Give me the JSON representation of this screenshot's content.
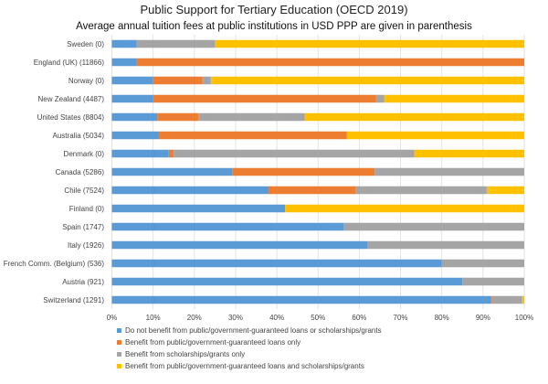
{
  "chart_data": {
    "type": "bar",
    "orientation": "horizontal",
    "stacked": "100%",
    "title": "Public Support for Tertiary Education (OECD 2019)",
    "subtitle": "Average annual tuition fees at public institutions in USD PPP are given in parenthesis",
    "categories": [
      "Sweden (0)",
      "England (UK) (11866)",
      "Norway (0)",
      "New Zealand (4487)",
      "United States (8804)",
      "Australia (5034)",
      "Denmark (0)",
      "Canada (5286)",
      "Chile (7524)",
      "Finland (0)",
      "Spain (1747)",
      "Italy (1926)",
      "French Comm. (Belgium) (536)",
      "Austria (921)",
      "Switzerland (1291)"
    ],
    "series": [
      {
        "name": "Do not benefit from public/government-guaranteed loans or scholarships/grants",
        "color": "#5b9bd5",
        "values": [
          6,
          6,
          10,
          10,
          11,
          11.4,
          13.8,
          29.2,
          38,
          42,
          56.3,
          62,
          80,
          85,
          92
        ]
      },
      {
        "name": "Benefit from public/government-guaranteed loans only",
        "color": "#ed7d31",
        "values": [
          0,
          94,
          12,
          54,
          10,
          45.6,
          1.2,
          34.5,
          21.2,
          0,
          0,
          0,
          0,
          0,
          0.2
        ]
      },
      {
        "name": "Benefit from scholarships/grants only",
        "color": "#a5a5a5",
        "values": [
          19,
          0,
          2,
          2,
          25.8,
          0,
          58.3,
          36.3,
          31.7,
          0,
          43.7,
          38,
          20,
          15,
          7.3
        ]
      },
      {
        "name": "Benefit from public/government-guaranteed loans and scholarships/grants",
        "color": "#ffc000",
        "values": [
          75,
          0,
          76,
          34,
          53.2,
          43,
          26.7,
          0,
          9.1,
          58,
          0,
          0,
          0,
          0,
          0.5
        ]
      }
    ],
    "xticks": [
      "0%",
      "10%",
      "20%",
      "30%",
      "40%",
      "50%",
      "60%",
      "70%",
      "80%",
      "90%",
      "100%"
    ],
    "xlim": [
      0,
      100
    ],
    "grid": "vertical",
    "legend_placement": "bottom"
  }
}
